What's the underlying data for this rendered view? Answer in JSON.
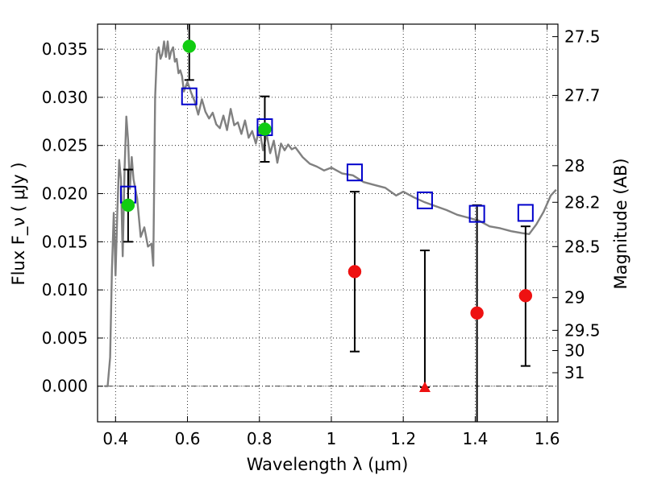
{
  "chart_data": {
    "type": "scatter",
    "xlabel": "Wavelength  λ (μm)",
    "ylabel": "Flux  F_ν  ( μJy )",
    "y2label": "Magnitude (AB)",
    "xlim": [
      0.35,
      1.63
    ],
    "ylim": [
      -0.0037,
      0.0376
    ],
    "grid": true,
    "x_ticks": [
      0.4,
      0.6,
      0.8,
      1.0,
      1.2,
      1.4,
      1.6
    ],
    "x_tick_labels": [
      "0.4",
      "0.6",
      "0.8",
      "1",
      "1.2",
      "1.4",
      "1.6"
    ],
    "y_ticks": [
      0.0,
      0.005,
      0.01,
      0.015,
      0.02,
      0.025,
      0.03,
      0.035
    ],
    "y_tick_labels": [
      "0.000",
      "0.005",
      "0.010",
      "0.015",
      "0.020",
      "0.025",
      "0.030",
      "0.035"
    ],
    "mag_ticks": [
      {
        "label": "27.5",
        "flux": 0.0363
      },
      {
        "label": "27.7",
        "flux": 0.0302
      },
      {
        "label": "28",
        "flux": 0.0229
      },
      {
        "label": "28.2",
        "flux": 0.0191
      },
      {
        "label": "28.5",
        "flux": 0.0145
      },
      {
        "label": "29",
        "flux": 0.0092
      },
      {
        "label": "29.5",
        "flux": 0.0058
      },
      {
        "label": "30",
        "flux": 0.0037
      },
      {
        "label": "31",
        "flux": 0.0014
      }
    ],
    "series": [
      {
        "kind": "model_spectrum",
        "style": "line",
        "color": "#808080",
        "x": [
          0.37,
          0.378,
          0.385,
          0.39,
          0.395,
          0.4,
          0.405,
          0.41,
          0.415,
          0.42,
          0.425,
          0.43,
          0.435,
          0.44,
          0.445,
          0.45,
          0.46,
          0.47,
          0.48,
          0.49,
          0.5,
          0.505,
          0.51,
          0.515,
          0.52,
          0.525,
          0.53,
          0.535,
          0.54,
          0.545,
          0.55,
          0.555,
          0.56,
          0.565,
          0.57,
          0.575,
          0.58,
          0.585,
          0.59,
          0.595,
          0.6,
          0.61,
          0.62,
          0.63,
          0.64,
          0.65,
          0.66,
          0.67,
          0.68,
          0.69,
          0.7,
          0.71,
          0.72,
          0.73,
          0.74,
          0.75,
          0.76,
          0.77,
          0.78,
          0.79,
          0.8,
          0.81,
          0.82,
          0.83,
          0.84,
          0.85,
          0.86,
          0.87,
          0.88,
          0.89,
          0.9,
          0.92,
          0.94,
          0.96,
          0.98,
          1.0,
          1.03,
          1.06,
          1.09,
          1.12,
          1.15,
          1.18,
          1.2,
          1.23,
          1.26,
          1.29,
          1.32,
          1.35,
          1.38,
          1.41,
          1.44,
          1.47,
          1.5,
          1.53,
          1.55,
          1.57,
          1.59,
          1.61,
          1.625
        ],
        "y": [
          0.0,
          0.0,
          0.003,
          0.012,
          0.018,
          0.0115,
          0.018,
          0.0235,
          0.0215,
          0.0135,
          0.0225,
          0.028,
          0.0255,
          0.0205,
          0.0238,
          0.0215,
          0.0195,
          0.0155,
          0.0165,
          0.0145,
          0.0148,
          0.0125,
          0.03,
          0.0345,
          0.0352,
          0.034,
          0.0345,
          0.0358,
          0.0342,
          0.0358,
          0.034,
          0.0348,
          0.0352,
          0.0337,
          0.034,
          0.0325,
          0.0328,
          0.0322,
          0.0306,
          0.0311,
          0.0316,
          0.0305,
          0.0296,
          0.0282,
          0.0298,
          0.0285,
          0.0278,
          0.0284,
          0.0272,
          0.0268,
          0.0281,
          0.0266,
          0.0288,
          0.0271,
          0.0274,
          0.0262,
          0.0276,
          0.0258,
          0.0265,
          0.0252,
          0.0268,
          0.0245,
          0.0262,
          0.0242,
          0.0255,
          0.0232,
          0.0252,
          0.0245,
          0.0251,
          0.0246,
          0.0248,
          0.0238,
          0.0231,
          0.0228,
          0.0224,
          0.0227,
          0.0221,
          0.0219,
          0.0212,
          0.0209,
          0.0206,
          0.0198,
          0.0202,
          0.0196,
          0.0191,
          0.0187,
          0.0183,
          0.0178,
          0.0175,
          0.0172,
          0.0166,
          0.0164,
          0.0161,
          0.0159,
          0.0158,
          0.0168,
          0.0181,
          0.0198,
          0.0204
        ]
      },
      {
        "kind": "model_photometry",
        "style": "open_square",
        "color": "#0000cc",
        "x": [
          0.435,
          0.605,
          0.815,
          1.065,
          1.26,
          1.405,
          1.54
        ],
        "y": [
          0.0199,
          0.0301,
          0.0269,
          0.0222,
          0.0193,
          0.0179,
          0.018
        ]
      },
      {
        "kind": "detections",
        "style": "filled_circle",
        "color": "#11cc11",
        "x": [
          0.435,
          0.605,
          0.815
        ],
        "y": [
          0.0188,
          0.0353,
          0.0267
        ],
        "yerr_low": [
          0.015,
          0.0318,
          0.0233
        ],
        "yerr_high": [
          0.0225,
          0.0376,
          0.0301
        ]
      },
      {
        "kind": "non_detections",
        "style": "filled_circle",
        "color": "#ee1111",
        "x": [
          1.065,
          1.405,
          1.54
        ],
        "y": [
          0.0119,
          0.0076,
          0.0094
        ],
        "yerr_low": [
          0.0036,
          -0.0037,
          0.0021
        ],
        "yerr_high": [
          0.0202,
          0.0188,
          0.0166
        ]
      },
      {
        "kind": "upper_limit",
        "style": "filled_triangle",
        "color": "#ee1111",
        "x": [
          1.26
        ],
        "y": [
          -0.0001
        ],
        "yerr_low": [
          -0.0001
        ],
        "yerr_high": [
          0.0141
        ]
      }
    ]
  }
}
